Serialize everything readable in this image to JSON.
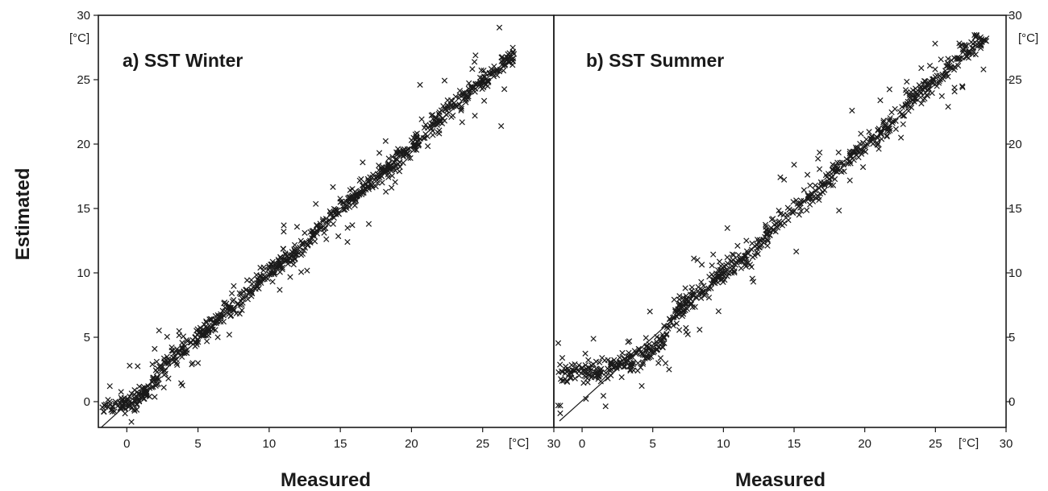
{
  "y_axis_title": "Estimated",
  "chart_data": [
    {
      "type": "scatter",
      "panel_title": "a) SST Winter",
      "xlabel": "Measured",
      "ylabel": "Estimated",
      "x_unit": "[°C]",
      "y_unit": "[°C]",
      "xlim": [
        -2,
        30
      ],
      "ylim": [
        -2,
        30
      ],
      "x_ticks": [
        0,
        5,
        10,
        15,
        20,
        25,
        30
      ],
      "y_ticks": [
        0,
        5,
        10,
        15,
        20,
        25,
        30
      ],
      "y_axis_side": "left",
      "marker": "x",
      "fit_line": [
        [
          -1.8,
          -2.0
        ],
        [
          27.0,
          26.8
        ]
      ],
      "noise_fraction": 0.12,
      "noise_range": [
        -3.0,
        3.0
      ],
      "anchors": [
        [
          -1.8,
          -0.5
        ],
        [
          -0.5,
          -0.2
        ],
        [
          0.5,
          0.1
        ],
        [
          1.5,
          0.8
        ],
        [
          2.5,
          2.7
        ],
        [
          4.0,
          4.0
        ],
        [
          6.0,
          6.0
        ],
        [
          8.0,
          8.0
        ],
        [
          10.0,
          10.1
        ],
        [
          12.0,
          11.8
        ],
        [
          14.0,
          14.0
        ],
        [
          16.0,
          15.8
        ],
        [
          18.0,
          17.8
        ],
        [
          20.0,
          19.8
        ],
        [
          22.0,
          22.0
        ],
        [
          24.0,
          24.0
        ],
        [
          26.0,
          25.9
        ],
        [
          27.2,
          27.0
        ]
      ],
      "scatter_sd": 0.55,
      "points": [
        [
          -1.5,
          -0.4
        ],
        [
          -1.2,
          -0.2
        ],
        [
          -1.0,
          -0.6
        ],
        [
          -0.8,
          0.0
        ],
        [
          -0.6,
          -0.3
        ],
        [
          -0.4,
          0.3
        ],
        [
          -0.2,
          -0.1
        ],
        [
          0.0,
          0.1
        ],
        [
          0.2,
          0.4
        ],
        [
          0.4,
          -0.1
        ],
        [
          0.6,
          0.2
        ],
        [
          0.8,
          0.6
        ],
        [
          1.0,
          0.3
        ],
        [
          1.2,
          0.8
        ],
        [
          1.5,
          1.2
        ],
        [
          1.8,
          2.9
        ],
        [
          2.1,
          3.1
        ],
        [
          2.4,
          2.6
        ],
        [
          2.6,
          1.1
        ],
        [
          2.9,
          3.3
        ],
        [
          3.3,
          3.4
        ],
        [
          3.6,
          3.8
        ],
        [
          3.9,
          4.2
        ],
        [
          4.2,
          4.0
        ],
        [
          4.5,
          4.6
        ],
        [
          4.8,
          4.3
        ],
        [
          5.0,
          3.0
        ],
        [
          5.4,
          5.1
        ],
        [
          5.7,
          5.6
        ],
        [
          6.0,
          5.9
        ],
        [
          6.3,
          6.2
        ],
        [
          6.6,
          6.8
        ],
        [
          6.9,
          7.3
        ],
        [
          7.2,
          5.2
        ],
        [
          7.5,
          7.9
        ],
        [
          7.8,
          7.6
        ],
        [
          8.1,
          8.0
        ],
        [
          8.4,
          8.7
        ],
        [
          8.8,
          8.4
        ],
        [
          9.2,
          9.5
        ],
        [
          9.6,
          10.2
        ],
        [
          10.0,
          10.4
        ],
        [
          10.4,
          10.0
        ],
        [
          10.8,
          11.2
        ],
        [
          11.2,
          11.0
        ],
        [
          11.6,
          11.4
        ],
        [
          12.0,
          11.6
        ],
        [
          12.5,
          13.1
        ],
        [
          13.0,
          12.7
        ],
        [
          13.5,
          13.4
        ],
        [
          14.0,
          14.2
        ],
        [
          14.5,
          13.8
        ],
        [
          15.0,
          15.5
        ],
        [
          15.5,
          12.4
        ],
        [
          15.8,
          15.9
        ],
        [
          16.2,
          16.0
        ],
        [
          16.6,
          16.8
        ],
        [
          17.0,
          16.5
        ],
        [
          17.5,
          17.4
        ],
        [
          18.0,
          18.2
        ],
        [
          18.5,
          18.0
        ],
        [
          19.0,
          19.2
        ],
        [
          19.5,
          19.6
        ],
        [
          20.0,
          20.3
        ],
        [
          20.5,
          20.0
        ],
        [
          21.0,
          21.5
        ],
        [
          21.5,
          20.7
        ],
        [
          22.0,
          21.9
        ],
        [
          22.5,
          22.6
        ],
        [
          23.0,
          23.2
        ],
        [
          23.5,
          22.9
        ],
        [
          24.0,
          23.7
        ],
        [
          24.5,
          24.3
        ],
        [
          25.0,
          24.9
        ],
        [
          25.5,
          25.5
        ],
        [
          26.0,
          25.8
        ],
        [
          26.3,
          21.4
        ],
        [
          26.6,
          26.6
        ],
        [
          27.0,
          26.8
        ],
        [
          27.2,
          27.0
        ],
        [
          20.6,
          24.6
        ],
        [
          22.8,
          22.1
        ],
        [
          18.2,
          16.3
        ],
        [
          17.0,
          13.8
        ],
        [
          13.6,
          13.5
        ]
      ]
    },
    {
      "type": "scatter",
      "panel_title": "b) SST Summer",
      "xlabel": "Measured",
      "ylabel": "Estimated",
      "x_unit": "[°C]",
      "y_unit": "[°C]",
      "xlim": [
        -2,
        30
      ],
      "ylim": [
        -2,
        30
      ],
      "x_ticks": [
        0,
        5,
        10,
        15,
        20,
        25,
        30
      ],
      "y_ticks": [
        0,
        5,
        10,
        15,
        20,
        25,
        30
      ],
      "y_axis_side": "right",
      "marker": "x",
      "fit_line": [
        [
          -1.6,
          -1.5
        ],
        [
          28.8,
          28.4
        ]
      ],
      "noise_fraction": 0.12,
      "noise_range": [
        -3.0,
        3.0
      ],
      "anchors": [
        [
          -1.7,
          2.0
        ],
        [
          0.0,
          2.3
        ],
        [
          2.0,
          2.6
        ],
        [
          4.0,
          3.4
        ],
        [
          5.5,
          4.5
        ],
        [
          6.5,
          6.5
        ],
        [
          7.5,
          7.8
        ],
        [
          9.0,
          9.0
        ],
        [
          10.5,
          10.5
        ],
        [
          12.0,
          11.5
        ],
        [
          14.0,
          14.1
        ],
        [
          16.0,
          15.7
        ],
        [
          18.0,
          17.8
        ],
        [
          20.0,
          19.9
        ],
        [
          22.0,
          21.7
        ],
        [
          24.0,
          24.0
        ],
        [
          26.0,
          26.0
        ],
        [
          28.0,
          27.8
        ],
        [
          28.8,
          28.4
        ]
      ],
      "scatter_sd": 0.6,
      "points": [
        [
          -1.7,
          -0.3
        ],
        [
          -1.4,
          3.4
        ],
        [
          -1.2,
          2.2
        ],
        [
          -0.5,
          1.8
        ],
        [
          0.0,
          2.6
        ],
        [
          0.4,
          1.5
        ],
        [
          0.8,
          2.9
        ],
        [
          1.2,
          2.0
        ],
        [
          1.6,
          3.2
        ],
        [
          2.0,
          2.4
        ],
        [
          2.4,
          2.7
        ],
        [
          2.8,
          1.9
        ],
        [
          3.2,
          3.5
        ],
        [
          3.6,
          2.9
        ],
        [
          4.0,
          4.1
        ],
        [
          4.4,
          3.6
        ],
        [
          4.8,
          7.0
        ],
        [
          5.1,
          3.9
        ],
        [
          5.4,
          3.0
        ],
        [
          5.8,
          5.9
        ],
        [
          6.2,
          6.4
        ],
        [
          6.6,
          7.0
        ],
        [
          7.0,
          7.4
        ],
        [
          7.4,
          8.0
        ],
        [
          7.8,
          8.3
        ],
        [
          8.2,
          8.6
        ],
        [
          8.6,
          9.0
        ],
        [
          9.0,
          9.7
        ],
        [
          9.4,
          9.2
        ],
        [
          9.8,
          10.2
        ],
        [
          10.2,
          10.6
        ],
        [
          10.6,
          10.9
        ],
        [
          11.0,
          12.1
        ],
        [
          11.5,
          11.3
        ],
        [
          12.0,
          11.8
        ],
        [
          12.5,
          12.4
        ],
        [
          13.0,
          13.0
        ],
        [
          13.5,
          14.2
        ],
        [
          14.0,
          13.8
        ],
        [
          14.5,
          14.5
        ],
        [
          15.0,
          18.4
        ],
        [
          15.5,
          15.6
        ],
        [
          16.0,
          15.7
        ],
        [
          16.5,
          16.4
        ],
        [
          17.0,
          16.9
        ],
        [
          17.5,
          17.3
        ],
        [
          18.0,
          17.9
        ],
        [
          18.5,
          18.4
        ],
        [
          19.0,
          19.0
        ],
        [
          19.5,
          19.4
        ],
        [
          20.0,
          19.8
        ],
        [
          20.5,
          20.6
        ],
        [
          21.0,
          21.2
        ],
        [
          21.5,
          21.4
        ],
        [
          22.0,
          21.8
        ],
        [
          22.5,
          22.5
        ],
        [
          23.0,
          23.1
        ],
        [
          23.5,
          23.3
        ],
        [
          24.0,
          24.0
        ],
        [
          24.5,
          24.8
        ],
        [
          25.0,
          25.2
        ],
        [
          25.5,
          25.4
        ],
        [
          26.0,
          26.1
        ],
        [
          26.5,
          26.6
        ],
        [
          27.0,
          27.3
        ],
        [
          27.4,
          27.2
        ],
        [
          27.8,
          27.9
        ],
        [
          28.2,
          28.3
        ],
        [
          28.6,
          28.0
        ],
        [
          24.0,
          25.9
        ],
        [
          26.9,
          24.5
        ],
        [
          28.4,
          25.8
        ],
        [
          19.1,
          22.6
        ],
        [
          21.1,
          23.4
        ],
        [
          22.9,
          24.2
        ]
      ]
    }
  ]
}
